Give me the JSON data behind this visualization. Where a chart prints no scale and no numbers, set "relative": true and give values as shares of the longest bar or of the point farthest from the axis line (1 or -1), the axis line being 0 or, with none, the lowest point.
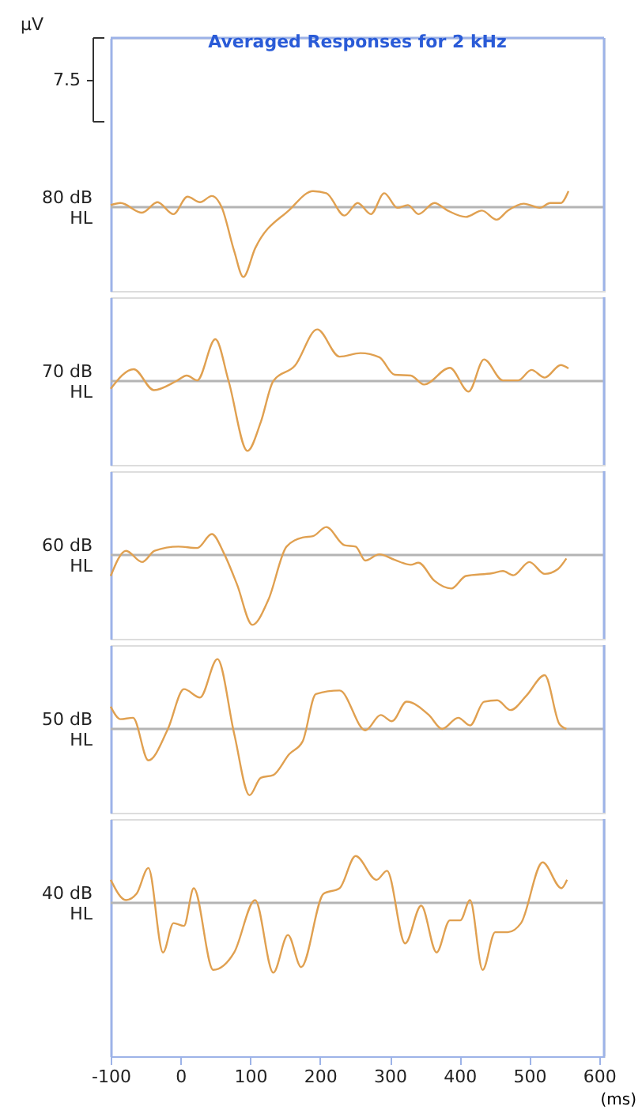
{
  "chart_data": [
    {
      "type": "line",
      "title": "Averaged Responses for 2 kHz",
      "annotations": [
        "µV",
        "7.5"
      ],
      "ylabel": "80 dB HL",
      "relative": true,
      "xlim": [
        -100,
        607
      ],
      "xticks": [
        -100,
        0,
        100,
        200,
        300,
        400,
        500,
        600
      ],
      "tick_labels": false,
      "series": [
        {
          "color": "#e0a050",
          "x": [
            -100,
            -86,
            -55,
            -33,
            -10,
            10,
            28,
            45,
            59,
            77,
            90,
            107,
            156,
            190,
            209,
            235,
            254,
            273,
            292,
            311,
            326,
            341,
            364,
            383,
            409,
            432,
            453,
            469,
            492,
            515,
            530,
            545,
            556
          ],
          "values": [
            0.03,
            0.06,
            -0.08,
            0.07,
            -0.1,
            0.15,
            0.07,
            0.16,
            0.0,
            -0.63,
            -1.0,
            -0.59,
            -0.04,
            0.23,
            0.2,
            -0.12,
            0.06,
            -0.1,
            0.2,
            -0.01,
            0.03,
            -0.1,
            0.06,
            -0.05,
            -0.14,
            -0.05,
            -0.18,
            -0.05,
            0.05,
            -0.01,
            0.06,
            0.06,
            0.23
          ]
        }
      ]
    },
    {
      "type": "line",
      "ylabel": "70 dB HL",
      "relative": true,
      "xlim": [
        -100,
        607
      ],
      "xticks": [
        -100,
        0,
        100,
        200,
        300,
        400,
        500,
        600
      ],
      "tick_labels": false,
      "series": [
        {
          "color": "#e0a050",
          "x": [
            -100,
            -67,
            -38,
            -6,
            9,
            24,
            50,
            69,
            96,
            115,
            133,
            164,
            196,
            228,
            258,
            285,
            307,
            330,
            349,
            386,
            413,
            435,
            462,
            484,
            503,
            522,
            545,
            556
          ],
          "values": [
            -0.11,
            0.17,
            -0.13,
            0.0,
            0.08,
            0.01,
            0.6,
            0.0,
            -1.0,
            -0.59,
            0.0,
            0.22,
            0.74,
            0.35,
            0.4,
            0.34,
            0.09,
            0.08,
            -0.05,
            0.19,
            -0.15,
            0.31,
            0.01,
            0.01,
            0.16,
            0.05,
            0.23,
            0.18
          ]
        }
      ]
    },
    {
      "type": "line",
      "ylabel": "60 dB HL",
      "relative": true,
      "xlim": [
        -100,
        607
      ],
      "xticks": [
        -100,
        0,
        100,
        200,
        300,
        400,
        500,
        600
      ],
      "tick_labels": false,
      "series": [
        {
          "color": "#e0a050",
          "x": [
            -100,
            -78,
            -55,
            -37,
            -3,
            24,
            45,
            62,
            81,
            103,
            126,
            152,
            175,
            190,
            209,
            235,
            251,
            265,
            285,
            307,
            330,
            341,
            364,
            388,
            409,
            447,
            462,
            477,
            500,
            522,
            541,
            553
          ],
          "values": [
            -0.3,
            0.06,
            -0.1,
            0.06,
            0.12,
            0.1,
            0.3,
            0.03,
            -0.42,
            -1.0,
            -0.64,
            0.12,
            0.25,
            0.27,
            0.4,
            0.14,
            0.12,
            -0.08,
            0.01,
            -0.07,
            -0.14,
            -0.11,
            -0.37,
            -0.48,
            -0.3,
            -0.26,
            -0.23,
            -0.29,
            -0.1,
            -0.27,
            -0.2,
            -0.05
          ]
        }
      ]
    },
    {
      "type": "line",
      "ylabel": "50 dB HL",
      "relative": true,
      "xlim": [
        -100,
        607
      ],
      "xticks": [
        -100,
        0,
        100,
        200,
        300,
        400,
        500,
        600
      ],
      "tick_labels": false,
      "series": [
        {
          "color": "#e0a050",
          "x": [
            -100,
            -86,
            -68,
            -46,
            -18,
            5,
            28,
            53,
            77,
            99,
            115,
            133,
            156,
            175,
            194,
            228,
            265,
            287,
            303,
            324,
            356,
            375,
            398,
            415,
            435,
            454,
            473,
            496,
            522,
            543,
            553
          ],
          "values": [
            0.32,
            0.14,
            0.16,
            -0.45,
            0.0,
            0.57,
            0.45,
            1.0,
            -0.07,
            -0.95,
            -0.7,
            -0.66,
            -0.36,
            -0.18,
            0.5,
            0.55,
            -0.02,
            0.2,
            0.11,
            0.39,
            0.2,
            0.0,
            0.16,
            0.05,
            0.39,
            0.41,
            0.27,
            0.48,
            0.77,
            0.07,
            0.0
          ]
        }
      ]
    },
    {
      "type": "line",
      "ylabel": "40 dB HL",
      "xlabel": "(ms)",
      "relative": true,
      "xlim": [
        -100,
        607
      ],
      "xticks": [
        -100,
        0,
        100,
        200,
        300,
        400,
        500,
        600
      ],
      "tick_labels": "x",
      "series": [
        {
          "color": "#e0a050",
          "x": [
            -100,
            -78,
            -63,
            -46,
            -25,
            -10,
            5,
            19,
            47,
            77,
            107,
            133,
            154,
            173,
            205,
            228,
            251,
            281,
            296,
            322,
            345,
            367,
            386,
            401,
            415,
            433,
            451,
            469,
            488,
            519,
            546,
            554
          ],
          "values": [
            0.33,
            0.04,
            0.13,
            0.5,
            -0.71,
            -0.29,
            -0.33,
            0.21,
            -0.96,
            -0.71,
            0.04,
            -1.0,
            -0.46,
            -0.92,
            0.13,
            0.21,
            0.67,
            0.33,
            0.46,
            -0.58,
            -0.04,
            -0.71,
            -0.25,
            -0.25,
            0.04,
            -0.96,
            -0.42,
            -0.42,
            -0.29,
            0.58,
            0.21,
            0.33
          ]
        }
      ]
    }
  ]
}
